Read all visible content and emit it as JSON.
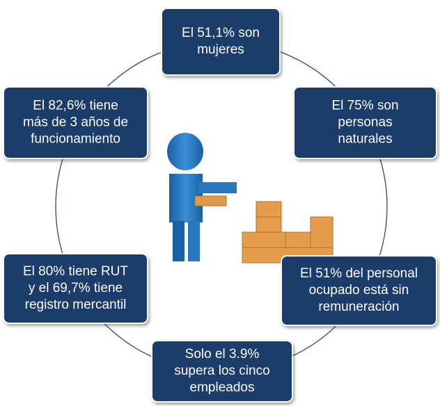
{
  "nodes": [
    {
      "lines": [
        "El 51,1% son",
        "mujeres"
      ]
    },
    {
      "lines": [
        "El 75% son",
        "personas",
        "naturales"
      ]
    },
    {
      "lines": [
        "El 51% del personal",
        "ocupado está sin",
        "remuneración"
      ]
    },
    {
      "lines": [
        "Solo el 3.9%",
        "supera los cinco",
        "empleados"
      ]
    },
    {
      "lines": [
        "El 80% tiene RUT",
        "y el 69,7% tiene",
        "registro mercantil"
      ]
    },
    {
      "lines": [
        "El 82,6% tiene",
        "más de 3 años de",
        "funcionamiento"
      ]
    }
  ]
}
